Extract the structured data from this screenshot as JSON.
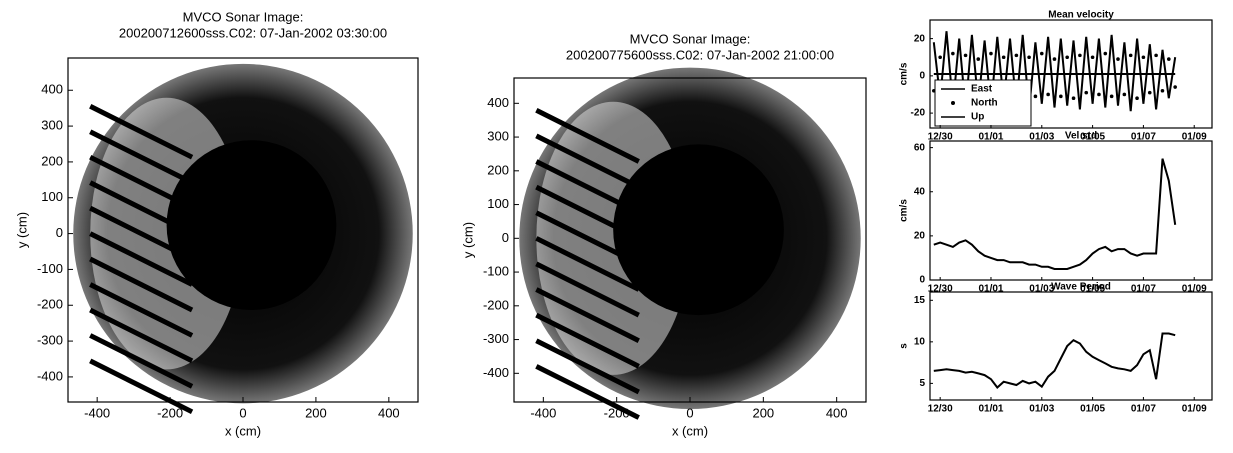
{
  "chart_data": [
    {
      "type": "image",
      "title": "MVCO Sonar Image:",
      "subtitle": "200200712600sss.C02: 07-Jan-2002 03:30:00",
      "xlabel": "x (cm)",
      "ylabel": "y (cm)",
      "xlim": [
        -480,
        480
      ],
      "ylim": [
        -470,
        490
      ],
      "xticks": [
        -400,
        -200,
        0,
        200,
        400
      ],
      "yticks": [
        400,
        300,
        200,
        100,
        0,
        -100,
        -200,
        -300,
        -400
      ]
    },
    {
      "type": "image",
      "title": "MVCO Sonar Image:",
      "subtitle": "200200775600sss.C02: 07-Jan-2002 21:00:00",
      "xlabel": "x (cm)",
      "ylabel": "y (cm)",
      "xlim": [
        -480,
        480
      ],
      "ylim": [
        -485,
        475
      ],
      "xticks": [
        -400,
        -200,
        0,
        200,
        400
      ],
      "yticks": [
        400,
        300,
        200,
        100,
        0,
        -100,
        -200,
        -300,
        -400
      ]
    },
    {
      "type": "line",
      "title": "Mean velocity",
      "ylabel": "cm/s",
      "legend": "lower left",
      "xlim": [
        -0.4,
        10.7
      ],
      "ylim": [
        -28,
        30
      ],
      "xticks": [
        {
          "value": 0,
          "label": "12/30"
        },
        {
          "value": 2,
          "label": "01/01"
        },
        {
          "value": 4,
          "label": "01/03"
        },
        {
          "value": 6,
          "label": "01/05"
        },
        {
          "value": 8,
          "label": "01/07"
        },
        {
          "value": 10,
          "label": "01/09"
        }
      ],
      "yticks": [
        20,
        0,
        -20
      ],
      "x": [
        -0.25,
        0,
        0.25,
        0.5,
        0.75,
        1,
        1.25,
        1.5,
        1.75,
        2,
        2.25,
        2.5,
        2.75,
        3,
        3.25,
        3.5,
        3.75,
        4,
        4.25,
        4.5,
        4.75,
        5,
        5.25,
        5.5,
        5.75,
        6,
        6.25,
        6.5,
        6.75,
        7,
        7.25,
        7.5,
        7.75,
        8,
        8.25,
        8.5,
        8.75,
        9,
        9.25
      ],
      "series": [
        {
          "name": "East",
          "color": "#000000",
          "marker": "line",
          "values": [
            18,
            -12,
            24,
            -16,
            20,
            -18,
            22,
            -15,
            19,
            -17,
            21,
            -14,
            20,
            -16,
            22,
            -18,
            18,
            -15,
            21,
            -17,
            20,
            -16,
            19,
            -18,
            21,
            -15,
            20,
            -17,
            22,
            -16,
            18,
            -19,
            20,
            -15,
            17,
            -18,
            14,
            -12,
            10
          ]
        },
        {
          "name": "North",
          "color": "#000000",
          "marker": "dot",
          "values": [
            -8,
            10,
            -10,
            12,
            -9,
            11,
            -11,
            9,
            -10,
            12,
            -8,
            10,
            -12,
            11,
            -9,
            10,
            -11,
            12,
            -10,
            9,
            -11,
            10,
            -12,
            11,
            -9,
            10,
            -10,
            12,
            -11,
            9,
            -10,
            11,
            -12,
            10,
            -9,
            11,
            -8,
            9,
            -6
          ]
        },
        {
          "name": "Up",
          "color": "#000000",
          "marker": "line",
          "values": [
            1,
            1,
            1,
            1,
            1,
            1,
            1,
            1,
            1,
            1,
            1,
            1,
            1,
            1,
            1,
            1,
            1,
            1,
            1,
            1,
            1,
            1,
            1,
            1,
            1,
            1,
            1,
            1,
            1,
            1,
            1,
            1,
            1,
            1,
            1,
            1,
            1,
            1,
            1
          ]
        }
      ]
    },
    {
      "type": "line",
      "title": "Vel std",
      "ylabel": "cm/s",
      "xlim": [
        -0.4,
        10.7
      ],
      "ylim": [
        0,
        63
      ],
      "xticks": [
        {
          "value": 0,
          "label": "12/30"
        },
        {
          "value": 2,
          "label": "01/01"
        },
        {
          "value": 4,
          "label": "01/03"
        },
        {
          "value": 6,
          "label": "01/05"
        },
        {
          "value": 8,
          "label": "01/07"
        },
        {
          "value": 10,
          "label": "01/09"
        }
      ],
      "yticks": [
        0,
        20,
        40,
        60
      ],
      "x": [
        -0.25,
        0,
        0.25,
        0.5,
        0.75,
        1,
        1.25,
        1.5,
        1.75,
        2,
        2.25,
        2.5,
        2.75,
        3,
        3.25,
        3.5,
        3.75,
        4,
        4.25,
        4.5,
        4.75,
        5,
        5.25,
        5.5,
        5.75,
        6,
        6.25,
        6.5,
        6.75,
        7,
        7.25,
        7.5,
        7.75,
        8,
        8.25,
        8.5,
        8.75,
        9,
        9.25
      ],
      "series": [
        {
          "color": "#000000",
          "marker": "line",
          "values": [
            16,
            17,
            16,
            15,
            17,
            18,
            16,
            13,
            11,
            10,
            9,
            9,
            8,
            8,
            8,
            7,
            7,
            6,
            6,
            5,
            5,
            5,
            6,
            7,
            9,
            12,
            14,
            15,
            13,
            14,
            14,
            12,
            11,
            12,
            12,
            12,
            55,
            45,
            25
          ]
        }
      ]
    },
    {
      "type": "line",
      "title": "Wave Period",
      "ylabel": "s",
      "xlim": [
        -0.4,
        10.7
      ],
      "ylim": [
        3,
        16
      ],
      "xticks": [
        {
          "value": 0,
          "label": "12/30"
        },
        {
          "value": 2,
          "label": "01/01"
        },
        {
          "value": 4,
          "label": "01/03"
        },
        {
          "value": 6,
          "label": "01/05"
        },
        {
          "value": 8,
          "label": "01/07"
        },
        {
          "value": 10,
          "label": "01/09"
        }
      ],
      "yticks": [
        5,
        10,
        15
      ],
      "x": [
        -0.25,
        0,
        0.25,
        0.5,
        0.75,
        1,
        1.25,
        1.5,
        1.75,
        2,
        2.25,
        2.5,
        2.75,
        3,
        3.25,
        3.5,
        3.75,
        4,
        4.25,
        4.5,
        4.75,
        5,
        5.25,
        5.5,
        5.75,
        6,
        6.25,
        6.5,
        6.75,
        7,
        7.25,
        7.5,
        7.75,
        8,
        8.25,
        8.5,
        8.75,
        9,
        9.25
      ],
      "series": [
        {
          "color": "#000000",
          "marker": "line",
          "values": [
            6.5,
            6.6,
            6.7,
            6.6,
            6.5,
            6.3,
            6.4,
            6.2,
            6.0,
            5.5,
            4.5,
            5.2,
            5.0,
            4.8,
            5.3,
            5.0,
            5.2,
            4.6,
            5.8,
            6.5,
            8.0,
            9.5,
            10.2,
            9.8,
            8.8,
            8.2,
            7.8,
            7.4,
            7.0,
            6.8,
            6.7,
            6.5,
            7.2,
            8.5,
            9.0,
            5.5,
            11.0,
            11.0,
            10.8
          ]
        }
      ]
    }
  ]
}
